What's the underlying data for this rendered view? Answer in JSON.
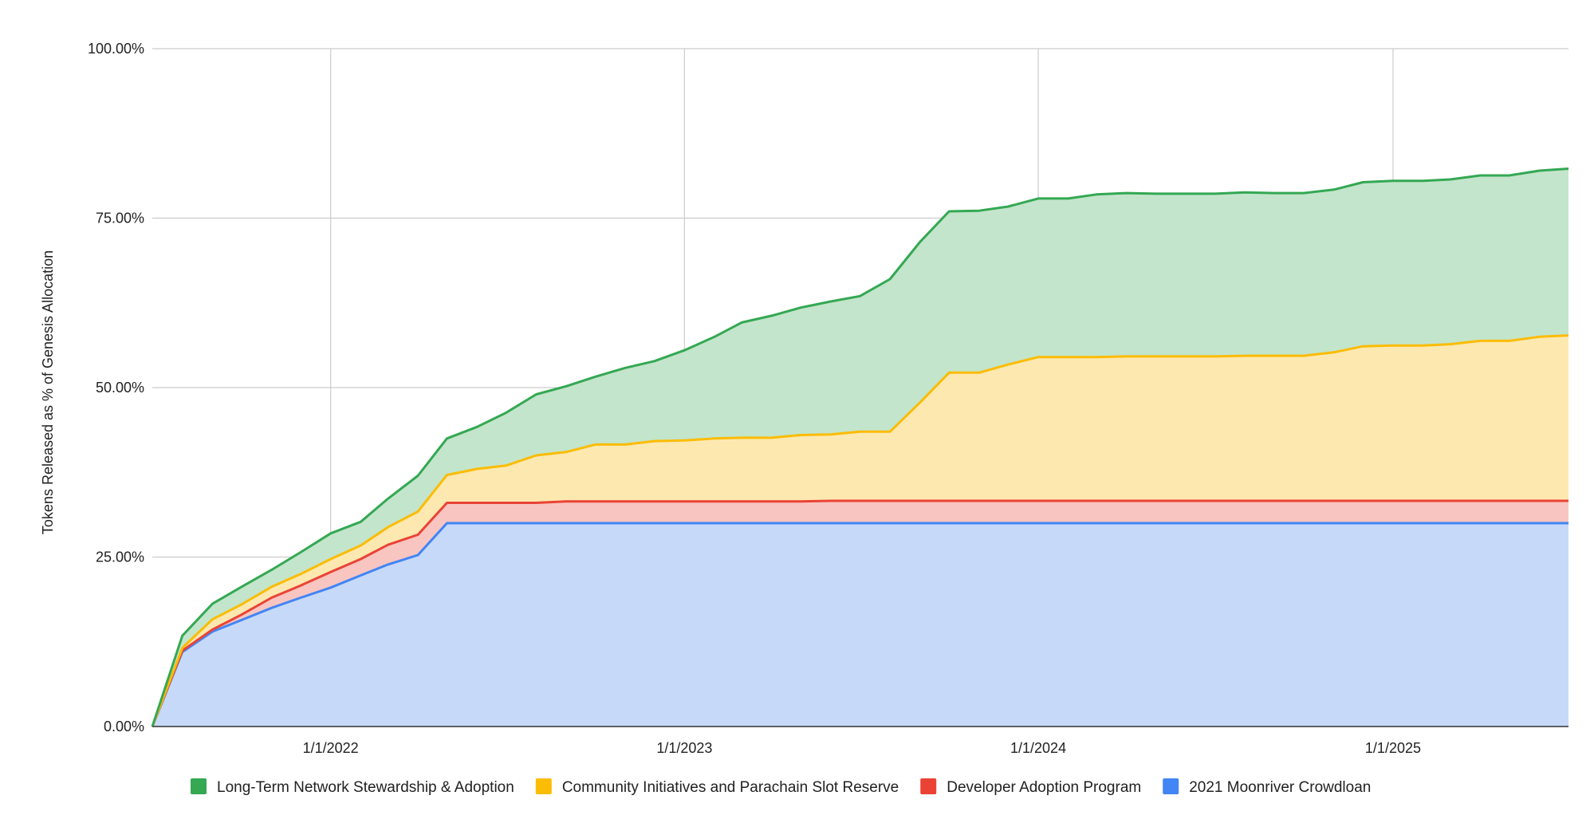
{
  "chart_data": {
    "type": "area",
    "stacked": true,
    "title": "",
    "xlabel": "",
    "ylabel": "Tokens Released as % of Genesis Allocation",
    "ylim": [
      0,
      100
    ],
    "yticks": [
      "0.00%",
      "25.00%",
      "50.00%",
      "75.00%",
      "100.00%"
    ],
    "xticks": [
      {
        "date": "2022-01-01",
        "label": "1/1/2022"
      },
      {
        "date": "2023-01-01",
        "label": "1/1/2023"
      },
      {
        "date": "2024-01-01",
        "label": "1/1/2024"
      },
      {
        "date": "2025-01-01",
        "label": "1/1/2025"
      }
    ],
    "xlim": [
      "2021-07-01",
      "2025-07-01"
    ],
    "grid": true,
    "legend_position": "bottom",
    "x": [
      "2021-07-01",
      "2021-08-01",
      "2021-09-01",
      "2021-10-01",
      "2021-11-01",
      "2021-12-01",
      "2022-01-01",
      "2022-02-01",
      "2022-03-01",
      "2022-04-01",
      "2022-05-01",
      "2022-06-01",
      "2022-07-01",
      "2022-08-01",
      "2022-09-01",
      "2022-10-01",
      "2022-11-01",
      "2022-12-01",
      "2023-01-01",
      "2023-02-01",
      "2023-03-01",
      "2023-04-01",
      "2023-05-01",
      "2023-06-01",
      "2023-07-01",
      "2023-08-01",
      "2023-09-01",
      "2023-10-01",
      "2023-11-01",
      "2023-12-01",
      "2024-01-01",
      "2024-02-01",
      "2024-03-01",
      "2024-04-01",
      "2024-05-01",
      "2024-06-01",
      "2024-07-01",
      "2024-08-01",
      "2024-09-01",
      "2024-10-01",
      "2024-11-01",
      "2024-12-01",
      "2025-01-01",
      "2025-02-01",
      "2025-03-01",
      "2025-04-01",
      "2025-05-01",
      "2025-06-01",
      "2025-07-01"
    ],
    "series": [
      {
        "name": "2021 Moonriver Crowdloan",
        "color": "#4285f4",
        "fill": "#c6d9f8",
        "values": [
          0,
          11,
          14,
          15.7,
          17.5,
          19,
          20.5,
          22.3,
          23.9,
          25.3,
          30,
          30,
          30,
          30,
          30,
          30,
          30,
          30,
          30,
          30,
          30,
          30,
          30,
          30,
          30,
          30,
          30,
          30,
          30,
          30,
          30,
          30,
          30,
          30,
          30,
          30,
          30,
          30,
          30,
          30,
          30,
          30,
          30,
          30,
          30,
          30,
          30,
          30,
          30
        ]
      },
      {
        "name": "Developer Adoption Program",
        "color": "#ea4335",
        "fill": "#f8c5c1",
        "values": [
          0,
          0.2,
          0.3,
          0.8,
          1.5,
          1.8,
          2.3,
          2.4,
          2.9,
          3,
          3,
          3,
          3,
          3,
          3.2,
          3.2,
          3.2,
          3.2,
          3.2,
          3.2,
          3.2,
          3.2,
          3.2,
          3.3,
          3.3,
          3.3,
          3.3,
          3.3,
          3.3,
          3.3,
          3.3,
          3.3,
          3.3,
          3.3,
          3.3,
          3.3,
          3.3,
          3.3,
          3.3,
          3.3,
          3.3,
          3.3,
          3.3,
          3.3,
          3.3,
          3.3,
          3.3,
          3.3,
          3.3
        ]
      },
      {
        "name": "Community Initiatives and Parachain Slot Reserve",
        "color": "#fbbc04",
        "fill": "#fde8b0",
        "values": [
          0,
          0.4,
          1.5,
          1.5,
          1.6,
          1.7,
          1.9,
          2,
          2.6,
          3.4,
          4.1,
          5,
          5.5,
          7,
          7.3,
          8.4,
          8.4,
          8.9,
          9,
          9.3,
          9.4,
          9.4,
          9.8,
          9.8,
          10.2,
          10.2,
          14.5,
          18.9,
          18.9,
          20.1,
          21.2,
          21.2,
          21.2,
          21.3,
          21.3,
          21.3,
          21.3,
          21.4,
          21.4,
          21.4,
          21.9,
          22.8,
          22.9,
          22.9,
          23.1,
          23.6,
          23.6,
          24.2,
          24.4
        ]
      },
      {
        "name": "Long-Term Network Stewardship & Adoption",
        "color": "#34a853",
        "fill": "#c3e5cb",
        "values": [
          0,
          1.8,
          2.3,
          2.6,
          2.5,
          3.2,
          3.8,
          3.5,
          4.2,
          5.3,
          5.4,
          6.2,
          7.8,
          9,
          9.7,
          10,
          11.3,
          11.8,
          13.3,
          15,
          17,
          18,
          18.8,
          19.6,
          20,
          22.5,
          23.7,
          23.8,
          23.9,
          23.3,
          23.4,
          23.4,
          24,
          24.1,
          24,
          24,
          24,
          24.1,
          24,
          24,
          24,
          24.2,
          24.3,
          24.3,
          24.3,
          24.4,
          24.4,
          24.5,
          24.6
        ]
      }
    ]
  }
}
